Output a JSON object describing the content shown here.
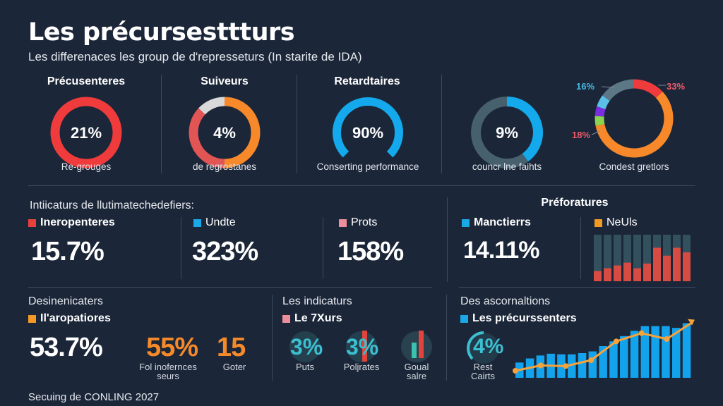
{
  "header": {
    "title": "Les précursesttturs",
    "subtitle": "Les differenaces les group de d'represseturs (In starite de IDA)"
  },
  "row1": [
    {
      "heading": "Précusenteres",
      "value": "21%",
      "caption": "Re-grouges"
    },
    {
      "heading": "Suiveurs",
      "value": "4%",
      "caption": "de regrostanes"
    },
    {
      "heading": "Retardtaires",
      "value": "90%",
      "caption": "Conserting performance"
    },
    {
      "heading": "",
      "value": "9%",
      "caption": "councr lne faihts"
    },
    {
      "heading": "",
      "value": "",
      "caption": "Condest gretlors",
      "label_a": "16%",
      "label_b": "33%",
      "label_c": "18%"
    }
  ],
  "indicators": {
    "title": "Intiicaturs de llutimatechedefiers:",
    "items": [
      {
        "label": "Ineropenteres",
        "value": "15.7%",
        "color": "#e8413c"
      },
      {
        "label": "Undte",
        "value": "323%",
        "color": "#1aa8e6"
      },
      {
        "label": "Prots",
        "value": "158%",
        "color": "#ec8e9c"
      }
    ]
  },
  "preforatures": {
    "title": "Préforatures",
    "metric_label": "Manctierrs",
    "metric_value": "14.11%",
    "metric_color": "#1aa8e6",
    "chart_label": "NeUls",
    "chart_color": "#f39a24"
  },
  "desinenicaters": {
    "title": "Desinenicaters",
    "label": "Il'aropatiores",
    "value": "53.7%",
    "stat1_value": "55%",
    "stat1_label": "Fol inofernces seurs",
    "stat2_value": "15",
    "stat2_label": "Goter"
  },
  "les_indicaturs": {
    "title": "Les indicaturs",
    "label": "Le 7Xurs",
    "items": [
      {
        "value": "3%",
        "label": "Puts"
      },
      {
        "value": "3%",
        "label": "Poljrates"
      },
      {
        "value": "",
        "label": "Goual salre"
      }
    ]
  },
  "ascornations": {
    "title": "Des ascornaltions",
    "label": "Les précurssenters",
    "gauge_value": "4%",
    "gauge_label": "Rest Cairts"
  },
  "footer": {
    "text": "Secuing de CONLING 2027"
  },
  "chart_data": [
    {
      "type": "pie",
      "name": "Précusenteres",
      "values": [
        100
      ],
      "colors": [
        "#ef3b3b"
      ]
    },
    {
      "type": "pie",
      "name": "Suiveurs",
      "values": [
        50,
        37,
        13
      ],
      "colors": [
        "#f7892a",
        "#e25555",
        "#d9d9d9"
      ]
    },
    {
      "type": "pie",
      "name": "Retardtaires",
      "values": [
        75,
        25
      ],
      "colors": [
        "#14a9ec",
        "transparent"
      ]
    },
    {
      "type": "pie",
      "values": [
        40,
        60
      ],
      "colors": [
        "#14a9ec",
        "#46606e"
      ]
    },
    {
      "type": "pie",
      "values": [
        13,
        59,
        4,
        4,
        5,
        15
      ],
      "colors": [
        "#ef3b3b",
        "#f7892a",
        "#8bd450",
        "#7b2ee0",
        "#5bc0e8",
        "#5c7785"
      ]
    },
    {
      "type": "bar",
      "name": "NeUls",
      "values": [
        22,
        28,
        34,
        40,
        28,
        38,
        72,
        55,
        72,
        62
      ],
      "ylim": [
        0,
        100
      ],
      "colors": [
        "#d64c42",
        "#33505f"
      ]
    },
    {
      "type": "bar",
      "name": "Les précurssenters",
      "values": [
        26,
        33,
        38,
        41,
        40,
        40,
        42,
        45,
        54,
        62,
        71,
        80,
        88,
        88,
        88,
        85,
        93
      ],
      "line": [
        36,
        45,
        44,
        54,
        86,
        100,
        90,
        118
      ],
      "ylim": [
        0,
        120
      ],
      "bar_color": "#13a2ec",
      "line_color": "#f6a23a"
    }
  ]
}
